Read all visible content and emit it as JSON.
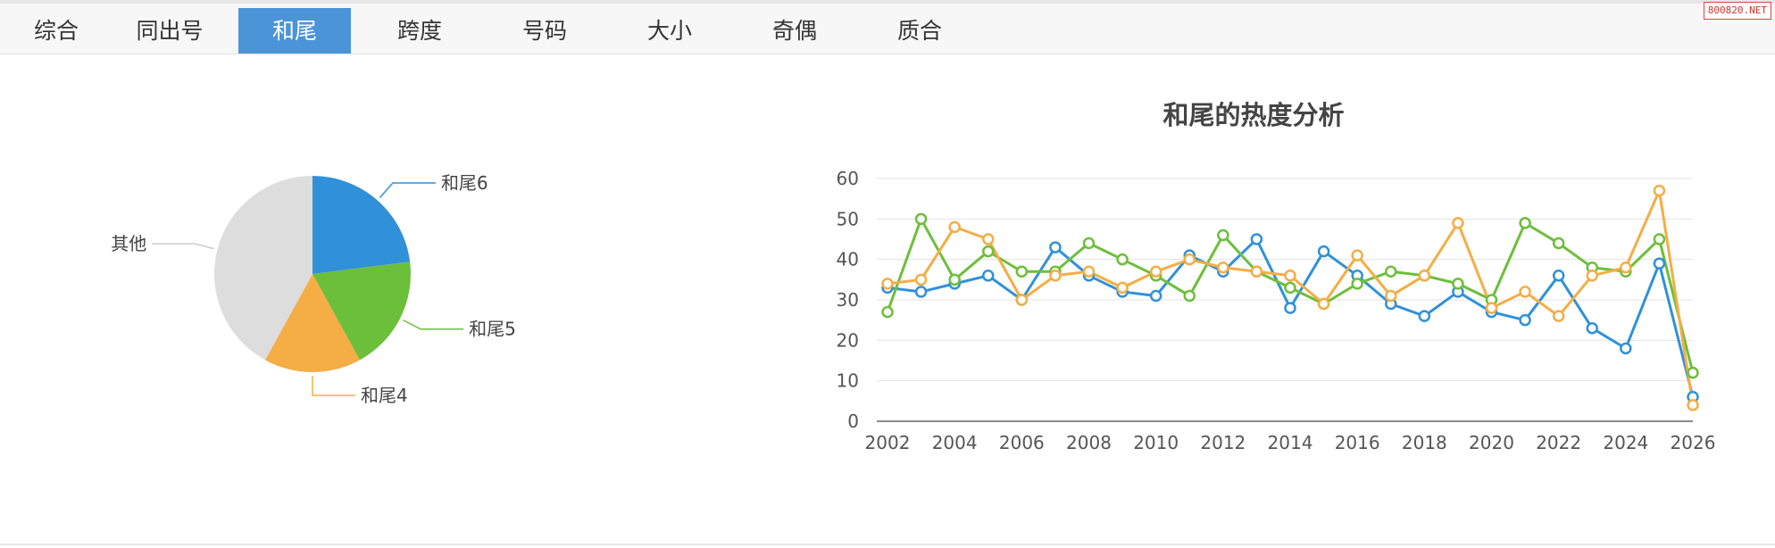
{
  "tabs": [
    {
      "label": "综合",
      "active": false
    },
    {
      "label": "同出号",
      "active": false
    },
    {
      "label": "和尾",
      "active": true
    },
    {
      "label": "跨度",
      "active": false
    },
    {
      "label": "号码",
      "active": false
    },
    {
      "label": "大小",
      "active": false
    },
    {
      "label": "奇偶",
      "active": false
    },
    {
      "label": "质合",
      "active": false
    }
  ],
  "watermark": "800820.NET",
  "chart_data": [
    {
      "type": "pie",
      "title": "",
      "slices": [
        {
          "label": "和尾6",
          "value": 23,
          "color": "#3091d9"
        },
        {
          "label": "和尾5",
          "value": 19,
          "color": "#6cbf3a"
        },
        {
          "label": "和尾4",
          "value": 16,
          "color": "#f5ad45"
        },
        {
          "label": "其他",
          "value": 42,
          "color": "#dddddd"
        }
      ]
    },
    {
      "type": "line",
      "title": "和尾的热度分析",
      "xlabel": "",
      "ylabel": "",
      "x": [
        2002,
        2003,
        2004,
        2005,
        2006,
        2007,
        2008,
        2009,
        2010,
        2011,
        2012,
        2013,
        2014,
        2015,
        2016,
        2017,
        2018,
        2019,
        2020,
        2021,
        2022,
        2023,
        2024,
        2025,
        2026
      ],
      "xticks": [
        "2002",
        "2004",
        "2006",
        "2008",
        "2010",
        "2012",
        "2014",
        "2016",
        "2018",
        "2020",
        "2022",
        "2024",
        "2026"
      ],
      "yticks": [
        "0",
        "10",
        "20",
        "30",
        "40",
        "50",
        "60"
      ],
      "ylim": [
        0,
        60
      ],
      "grid": true,
      "legend": "none",
      "series": [
        {
          "color": "#3091d9",
          "values": [
            33,
            32,
            34,
            36,
            30,
            43,
            36,
            32,
            31,
            41,
            37,
            45,
            28,
            42,
            36,
            29,
            26,
            32,
            27,
            25,
            36,
            23,
            18,
            39,
            6
          ]
        },
        {
          "color": "#6cbf3a",
          "values": [
            27,
            50,
            35,
            42,
            37,
            37,
            44,
            40,
            36,
            31,
            46,
            37,
            33,
            29,
            34,
            37,
            36,
            34,
            30,
            49,
            44,
            38,
            37,
            45,
            12
          ]
        },
        {
          "color": "#f5ad45",
          "values": [
            34,
            35,
            48,
            45,
            30,
            36,
            37,
            33,
            37,
            40,
            38,
            37,
            36,
            29,
            41,
            31,
            36,
            49,
            28,
            32,
            26,
            36,
            38,
            57,
            4
          ]
        }
      ]
    }
  ]
}
